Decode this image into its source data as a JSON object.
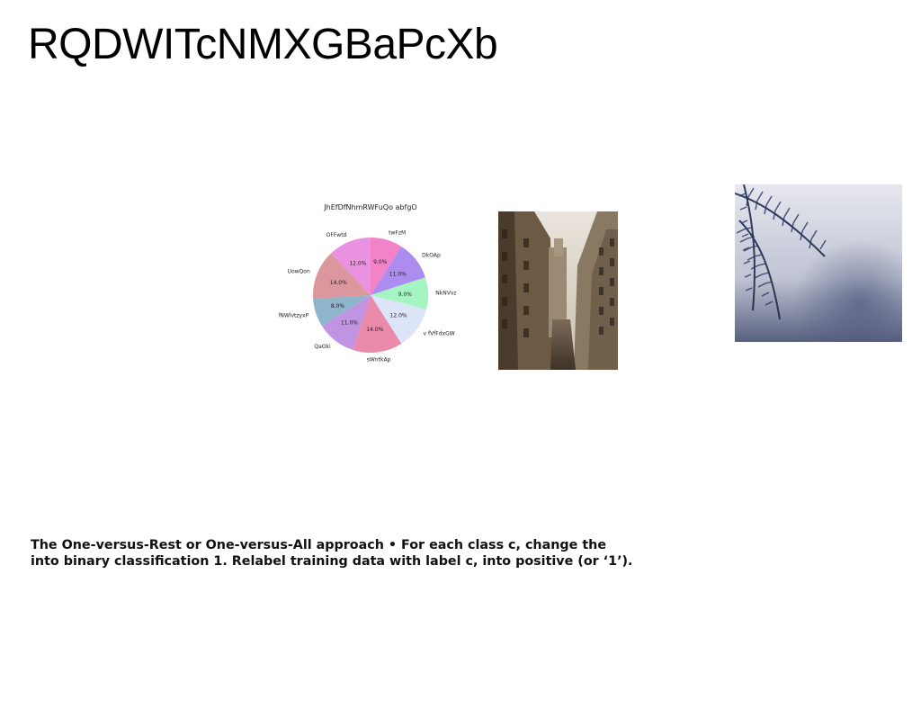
{
  "slide": {
    "title": "RQDWITcNMXGBaPcXb",
    "body": "The One-versus-Rest or One-versus-All approach • For each class c, change the\ninto binary classification 1. Relabel training data with label c, into positive (or ‘1’)."
  },
  "chart_data": {
    "type": "pie",
    "title": "JhEfDfNhmRWFuQo abfgO",
    "start_angle_deg": 90,
    "direction": "clockwise",
    "slices": [
      {
        "label": "twFzM",
        "value": 9.0,
        "pct_label": "9.0%",
        "color": "#f383c8"
      },
      {
        "label": "DkOAp",
        "value": 11.0,
        "pct_label": "11.0%",
        "color": "#ad8cf0"
      },
      {
        "label": "NkNVvz",
        "value": 9.0,
        "pct_label": "9.0%",
        "color": "#a5f5c2"
      },
      {
        "label": "v fVfFdxGW",
        "value": 12.0,
        "pct_label": "12.0%",
        "color": "#dce4f7"
      },
      {
        "label": "sWntkAp",
        "value": 14.0,
        "pct_label": "14.0%",
        "color": "#ea8aab"
      },
      {
        "label": "QaOki",
        "value": 11.0,
        "pct_label": "11.0%",
        "color": "#c194e3"
      },
      {
        "label": "fNWlvtzyxP",
        "value": 8.0,
        "pct_label": "8.0%",
        "color": "#8eb5cb"
      },
      {
        "label": "UowQon",
        "value": 14.0,
        "pct_label": "14.0%",
        "color": "#db969e"
      },
      {
        "label": "OFFwtd",
        "value": 12.0,
        "pct_label": "12.0%",
        "color": "#ea92e1"
      }
    ]
  },
  "images": {
    "city_photo_icon": "city-street-photo",
    "fern_photo_icon": "fern-leaves-photo"
  }
}
